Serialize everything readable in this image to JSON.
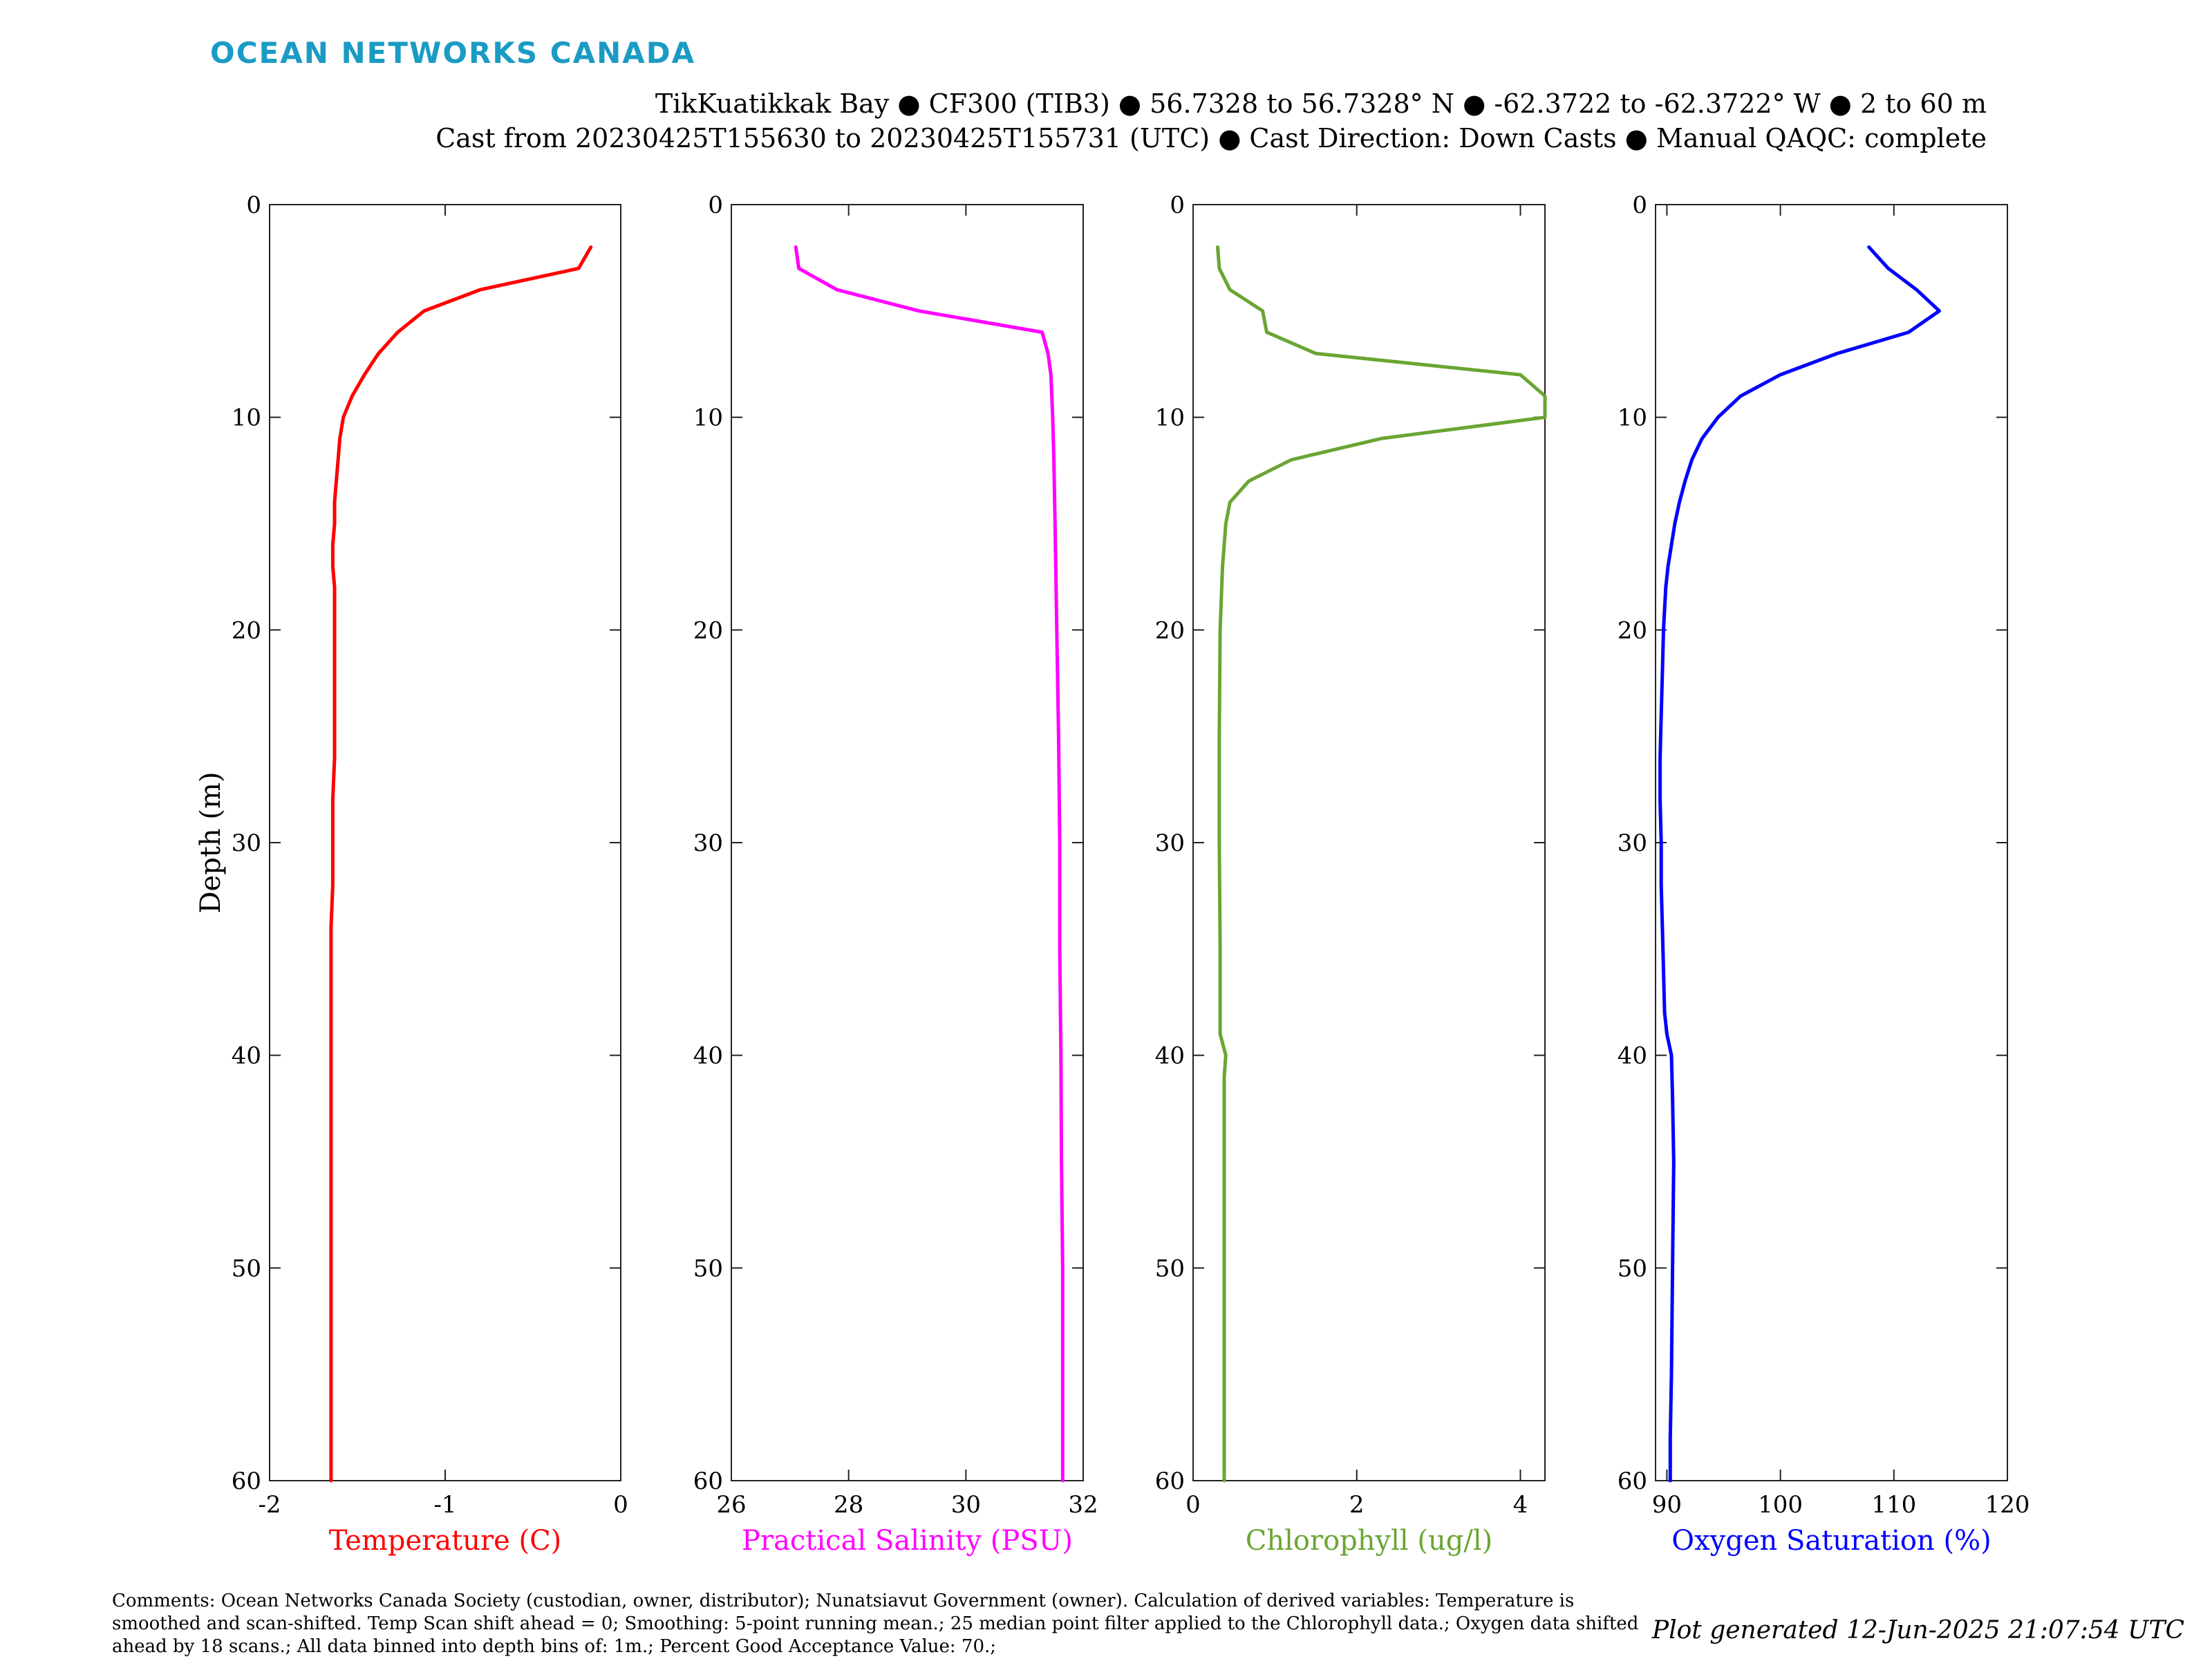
{
  "header": {
    "brand": "OCEAN NETWORKS CANADA",
    "title_line1": "TikKuatikkak Bay ● CF300 (TIB3) ● 56.7328 to 56.7328° N ● -62.3722 to -62.3722° W ● 2 to 60 m",
    "title_line2": "Cast from 20230425T155630 to 20230425T155731 (UTC) ● Cast Direction: Down Casts ● Manual QAQC: complete"
  },
  "footer": {
    "comments": "Comments: Ocean Networks Canada Society (custodian, owner, distributor); Nunatsiavut Government (owner). Calculation of derived variables: Temperature is smoothed and scan-shifted. Temp Scan shift ahead = 0; Smoothing: 5-point running mean.; 25 median point filter applied to the Chlorophyll data.; Oxygen data shifted ahead by 18 scans.; All data binned into depth bins of: 1m.; Percent Good Acceptance Value: 70.;",
    "generated": "Plot generated 12-Jun-2025 21:07:54 UTC"
  },
  "chart_data": [
    {
      "type": "line",
      "xlabel": "Temperature (C)",
      "ylabel": "Depth (m)",
      "color": "#ff0000",
      "xlim": [
        -2,
        0
      ],
      "ylim": [
        0,
        60
      ],
      "y_reversed": true,
      "xticks": [
        -2,
        -1,
        0
      ],
      "yticks": [
        0,
        10,
        20,
        30,
        40,
        50,
        60
      ],
      "x": [
        -0.17,
        -0.24,
        -0.8,
        -1.12,
        -1.27,
        -1.38,
        -1.46,
        -1.53,
        -1.58,
        -1.6,
        -1.61,
        -1.62,
        -1.63,
        -1.63,
        -1.64,
        -1.64,
        -1.63,
        -1.63,
        -1.63,
        -1.63,
        -1.63,
        -1.63,
        -1.64,
        -1.64,
        -1.64,
        -1.65,
        -1.65,
        -1.65,
        -1.65,
        -1.65,
        -1.65,
        -1.65
      ],
      "y": [
        2,
        3,
        4,
        5,
        6,
        7,
        8,
        9,
        10,
        11,
        12,
        13,
        14,
        15,
        16,
        17,
        18,
        19,
        20,
        22,
        24,
        26,
        28,
        30,
        32,
        34,
        36,
        38,
        40,
        45,
        50,
        60
      ]
    },
    {
      "type": "line",
      "xlabel": "Practical Salinity (PSU)",
      "ylabel": "",
      "color": "#ff00ff",
      "xlim": [
        26,
        32
      ],
      "ylim": [
        0,
        60
      ],
      "y_reversed": true,
      "xticks": [
        26,
        28,
        30,
        32
      ],
      "yticks": [
        0,
        10,
        20,
        30,
        40,
        50,
        60
      ],
      "x": [
        27.1,
        27.15,
        27.8,
        29.2,
        31.3,
        31.4,
        31.45,
        31.48,
        31.5,
        31.52,
        31.55,
        31.58,
        31.6,
        31.6,
        31.62,
        31.63,
        31.65,
        31.65
      ],
      "y": [
        2,
        3,
        4,
        5,
        6,
        7,
        8,
        10,
        12,
        15,
        20,
        25,
        30,
        35,
        40,
        45,
        50,
        60
      ]
    },
    {
      "type": "line",
      "xlabel": "Chlorophyll (ug/l)",
      "ylabel": "",
      "color": "#6aa532",
      "xlim": [
        0,
        4.3
      ],
      "ylim": [
        0,
        60
      ],
      "y_reversed": true,
      "xticks": [
        0,
        2,
        4
      ],
      "yticks": [
        0,
        10,
        20,
        30,
        40,
        50,
        60
      ],
      "x": [
        0.3,
        0.32,
        0.45,
        0.85,
        0.9,
        1.5,
        4.0,
        4.3,
        4.3,
        2.3,
        1.2,
        0.68,
        0.45,
        0.4,
        0.38,
        0.36,
        0.35,
        0.33,
        0.32,
        0.32,
        0.33,
        0.33,
        0.4,
        0.38,
        0.38,
        0.38,
        0.38
      ],
      "y": [
        2,
        3,
        4,
        5,
        6,
        7,
        8,
        9,
        10,
        11,
        12,
        13,
        14,
        15,
        16,
        17,
        18,
        20,
        25,
        30,
        35,
        39,
        40,
        41,
        45,
        50,
        60
      ]
    },
    {
      "type": "line",
      "xlabel": "Oxygen Saturation (%)",
      "ylabel": "",
      "color": "#0000ff",
      "xlim": [
        89,
        120
      ],
      "ylim": [
        0,
        60
      ],
      "y_reversed": true,
      "xticks": [
        90,
        100,
        110,
        120
      ],
      "yticks": [
        0,
        10,
        20,
        30,
        40,
        50,
        60
      ],
      "x": [
        107.8,
        109.5,
        112,
        114,
        111.3,
        105,
        100,
        96.5,
        94.5,
        93.1,
        92.2,
        91.6,
        91.1,
        90.7,
        90.4,
        90.1,
        89.9,
        89.7,
        89.6,
        89.5,
        89.4,
        89.4,
        89.5,
        89.5,
        89.6,
        89.7,
        89.8,
        90,
        90.4,
        90.5,
        90.6,
        90.5,
        90.4,
        90.3,
        90.3
      ],
      "y": [
        2,
        3,
        4,
        5,
        6,
        7,
        8,
        9,
        10,
        11,
        12,
        13,
        14,
        15,
        16,
        17,
        18,
        20,
        22,
        24,
        26,
        28,
        30,
        32,
        34,
        36,
        38,
        39,
        40,
        42,
        45,
        50,
        55,
        58,
        60
      ]
    }
  ]
}
